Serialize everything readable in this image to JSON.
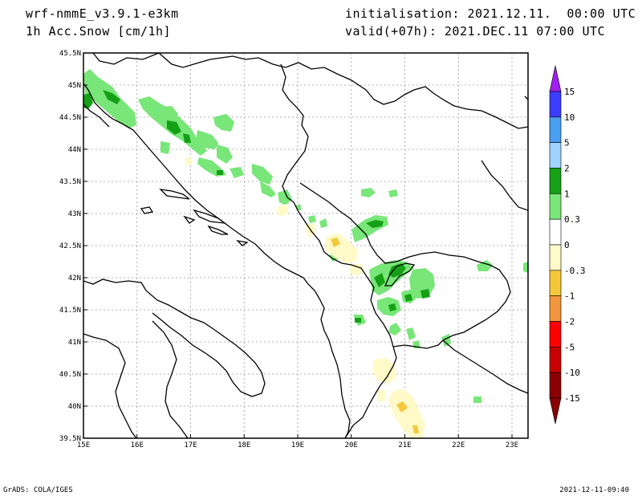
{
  "header": {
    "model": "wrf-nmmE_v3.9.1-e3km",
    "variable": "1h Acc.Snow [cm/1h]",
    "initialisation": "initialisation: 2021.12.11.  00:00 UTC",
    "valid": "valid(+07h): 2021.DEC.11 07:00 UTC"
  },
  "footer": {
    "software": "GrADS: COLA/IGES",
    "timestamp": "2021-12-11-09:40"
  },
  "map": {
    "lon_range": [
      15,
      23.3
    ],
    "lat_range": [
      39.5,
      45.5
    ],
    "lon_ticks": [
      "15E",
      "16E",
      "17E",
      "18E",
      "19E",
      "20E",
      "21E",
      "22E",
      "23E"
    ],
    "lat_ticks": [
      "45.5N",
      "45N",
      "44.5N",
      "44N",
      "43.5N",
      "43N",
      "42.5N",
      "42N",
      "41.5N",
      "41N",
      "40.5N",
      "40N",
      "39.5N"
    ],
    "grid": true
  },
  "colorbar": {
    "levels": [
      "15",
      "10",
      "5",
      "2",
      "1",
      "0.3",
      "0",
      "-0.3",
      "-1",
      "-2",
      "-5",
      "-10",
      "-15"
    ],
    "colors": [
      "#a020f0",
      "#3c3cff",
      "#4a9ff0",
      "#a0d2ff",
      "#15a015",
      "#78e678",
      "#ffffff",
      "#fffac8",
      "#f5c83c",
      "#f0963c",
      "#ff0000",
      "#c80000",
      "#8b0000"
    ]
  }
}
